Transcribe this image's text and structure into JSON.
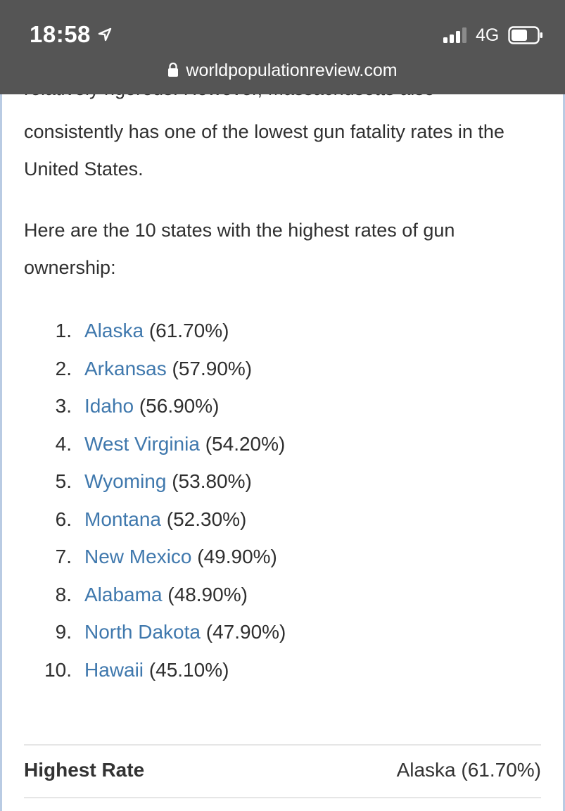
{
  "status_bar": {
    "time": "18:58",
    "network": "4G",
    "icons": [
      "location-arrow-icon",
      "signal-bars-icon",
      "battery-icon"
    ]
  },
  "url_bar": {
    "domain": "worldpopulationreview.com",
    "icon": "lock-icon"
  },
  "article": {
    "partial_line": "relatively rigorous. However, Massachusetts also",
    "paragraph_1": "consistently has one of the lowest gun fatality rates in the United States.",
    "paragraph_2": "Here are the 10 states with the highest rates of gun ownership:",
    "list": [
      {
        "num": "1.",
        "state": "Alaska",
        "pct": "(61.70%)"
      },
      {
        "num": "2.",
        "state": "Arkansas",
        "pct": "(57.90%)"
      },
      {
        "num": "3.",
        "state": "Idaho",
        "pct": "(56.90%)"
      },
      {
        "num": "4.",
        "state": "West Virginia",
        "pct": "(54.20%)"
      },
      {
        "num": "5.",
        "state": "Wyoming",
        "pct": "(53.80%)"
      },
      {
        "num": "6.",
        "state": "Montana",
        "pct": "(52.30%)"
      },
      {
        "num": "7.",
        "state": "New Mexico",
        "pct": "(49.90%)"
      },
      {
        "num": "8.",
        "state": "Alabama",
        "pct": "(48.90%)"
      },
      {
        "num": "9.",
        "state": "North Dakota",
        "pct": "(47.90%)"
      },
      {
        "num": "10.",
        "state": "Hawaii",
        "pct": "(45.10%)"
      }
    ]
  },
  "stats": {
    "highest_label": "Highest Rate",
    "highest_value": "Alaska (61.70%)"
  },
  "colors": {
    "link": "#3f78ad",
    "topbar": "#555555",
    "text": "#2f2f2f",
    "side_rule": "#b9cbe3"
  }
}
